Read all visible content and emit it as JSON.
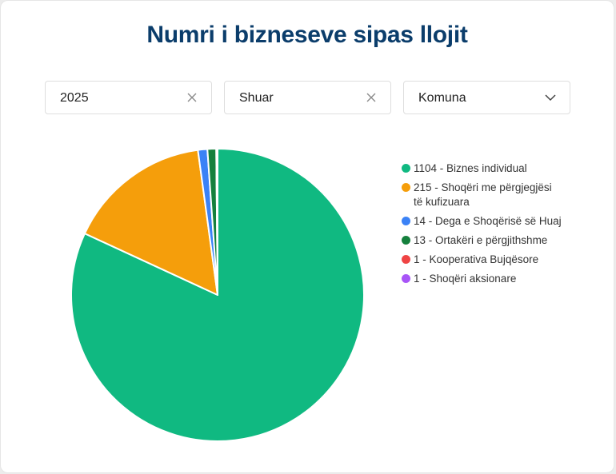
{
  "title": "Numri i bizneseve sipas llojit",
  "filters": [
    {
      "value": "2025",
      "icon": "clear-icon"
    },
    {
      "value": "Shuar",
      "icon": "clear-icon"
    },
    {
      "value": "Komuna",
      "icon": "chevron-down-icon"
    }
  ],
  "chart_data": {
    "type": "pie",
    "categories": [
      "Biznes individual",
      "Shoqëri me përgjegjësi të kufizuara",
      "Dega e Shoqërisë së Huaj",
      "Ortakëri e përgjithshme",
      "Kooperativa Bujqësore",
      "Shoqëri aksionare"
    ],
    "values": [
      1104,
      215,
      14,
      13,
      1,
      1
    ],
    "colors": [
      "#10b981",
      "#f59e0b",
      "#3b82f6",
      "#15803d",
      "#ef4444",
      "#a855f7"
    ],
    "legend": [
      "1104 - Biznes individual",
      "215 - Shoqëri me përgjegjësi të kufizuara",
      "14 - Dega e Shoqërisë së Huaj",
      "13 - Ortakëri e përgjithshme",
      "1 - Kooperativa Bujqësore",
      "1 - Shoqëri aksionare"
    ],
    "legend_position": "right"
  }
}
